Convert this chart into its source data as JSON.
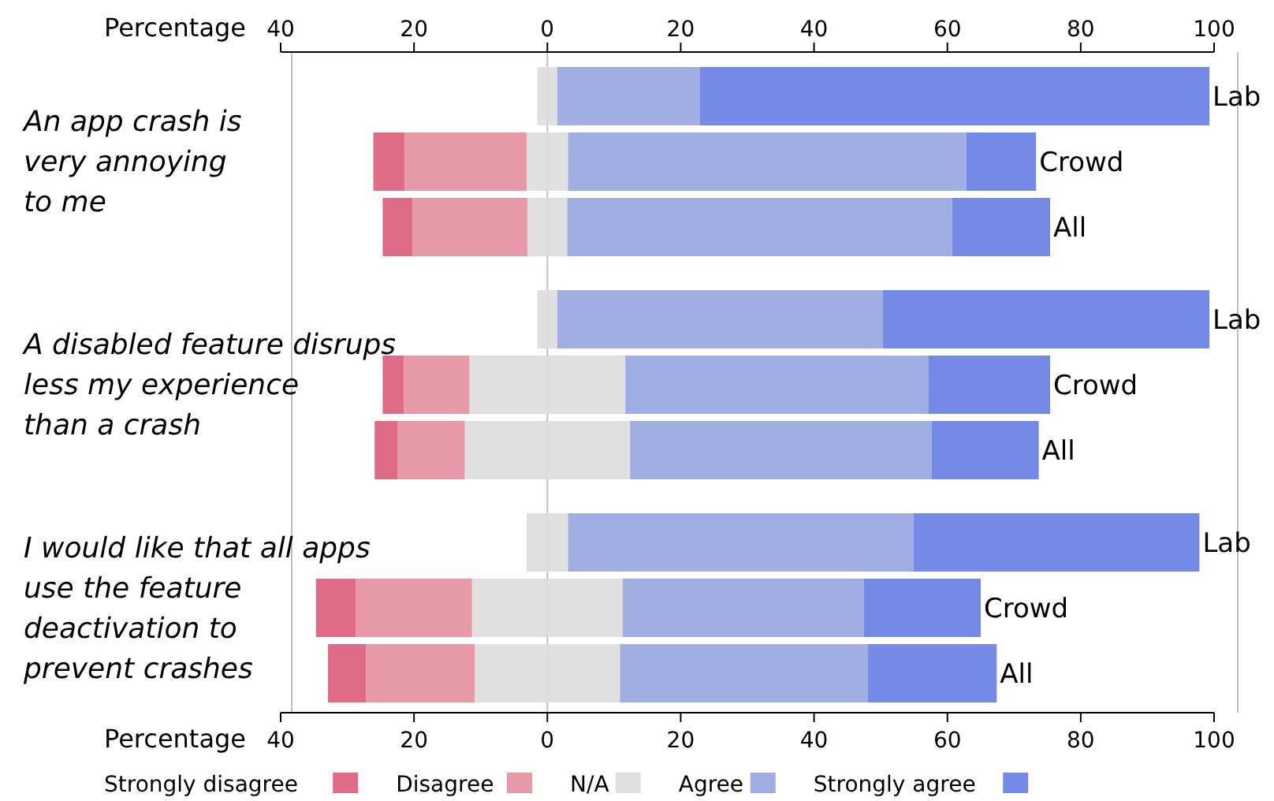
{
  "chart_data": {
    "type": "bar",
    "orientation": "horizontal",
    "stacked": true,
    "categories": [
      "Lab",
      "Crowd",
      "All",
      "Lab",
      "Crowd",
      "All",
      "Lab",
      "Crowd",
      "All"
    ],
    "series": [
      {
        "color": "#e0e0e0",
        "values": [
          -1.5,
          -3.1,
          -3.0,
          -1.5,
          -11.7,
          -12.4,
          -3.1,
          -11.3,
          -10.9
        ]
      },
      {
        "name": "Disagree",
        "color": "#e899a8",
        "values": [
          0,
          -18.3,
          -17.2,
          0,
          -9.8,
          -10.1,
          0,
          -17.4,
          -16.3
        ]
      },
      {
        "name": "Strongly disagree",
        "color": "#e06b87",
        "values": [
          0,
          -4.7,
          -4.5,
          0,
          -3.2,
          -3.4,
          0,
          -6.0,
          -5.7
        ]
      },
      {
        "name": "N/A",
        "color": "#e0e0e0",
        "values": [
          1.5,
          3.1,
          3.0,
          1.5,
          11.7,
          12.4,
          3.1,
          11.3,
          10.9
        ]
      },
      {
        "name": "Agree",
        "color": "#a1aee4",
        "values": [
          21.4,
          59.7,
          57.7,
          48.8,
          45.5,
          45.2,
          51.8,
          36.2,
          37.2
        ]
      },
      {
        "name": "Strongly agree",
        "color": "#7589e6",
        "values": [
          76.4,
          10.5,
          14.7,
          49.0,
          18.2,
          16.1,
          42.9,
          17.5,
          19.3
        ]
      }
    ],
    "xlabel": "Percentage",
    "x2label": "Percentage",
    "xlim": [
      -40,
      100
    ],
    "x2lim": [
      -40,
      100
    ],
    "xticks": [
      {
        "value": -40,
        "label": "40"
      },
      {
        "value": -20,
        "label": "20"
      },
      0,
      20,
      40,
      60,
      80,
      100
    ],
    "x2ticks": [
      {
        "value": -40,
        "label": "40"
      },
      {
        "value": -20,
        "label": "20"
      },
      0,
      20,
      40,
      60,
      80,
      100
    ],
    "ref_lines": [
      {
        "axis": "x",
        "value": 0,
        "color": "#c0c0c0"
      }
    ],
    "annotations": [
      "An app crash is\nvery annoying\nto me",
      "A disabled feature disrups\nless my experience\nthan a crash",
      "I would like that all apps\nuse the feature\ndeactivation to\nprevent crashes"
    ],
    "legend": "bottom"
  }
}
